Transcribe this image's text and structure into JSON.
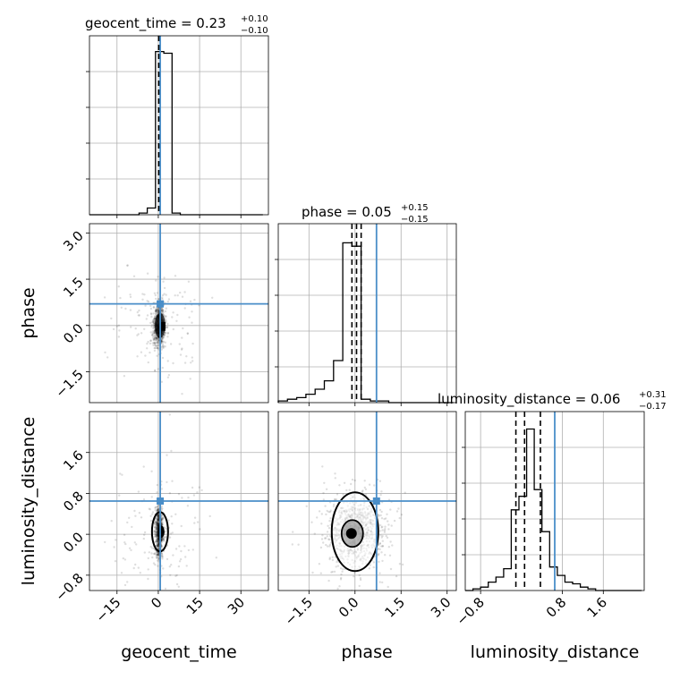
{
  "chart_data": {
    "type": "corner",
    "truth_color": "#4a8ec8",
    "parameters": [
      {
        "name": "geocent_time",
        "xlabel": "geocent_time",
        "title_prefix": "geocent_time = 0.23",
        "title_plus": "+0.10",
        "title_minus": "−0.10",
        "range": [
          -25,
          40
        ],
        "ticks": [
          -15,
          0,
          15,
          30
        ],
        "tick_labels": [
          "−15",
          "0",
          "15",
          "30"
        ],
        "truth": 0.7,
        "quantiles": [
          0.13,
          0.23,
          0.33
        ],
        "hist_edges": [
          -25,
          -22,
          -19,
          -16,
          -13,
          -10,
          -7,
          -4,
          -1,
          2,
          5,
          8,
          11,
          14,
          17,
          20,
          23,
          26,
          29,
          32,
          35,
          38
        ],
        "hist_counts": [
          0,
          0,
          0,
          0,
          0,
          0,
          0.01,
          0.04,
          0.97,
          0.96,
          0.01,
          0,
          0,
          0,
          0,
          0,
          0,
          0,
          0,
          0,
          0
        ]
      },
      {
        "name": "phase",
        "xlabel": "phase",
        "ylabel": "phase",
        "title_prefix": "phase = 0.05",
        "title_plus": "+0.15",
        "title_minus": "−0.15",
        "range": [
          -2.5,
          3.3
        ],
        "ticks": [
          -1.5,
          0.0,
          1.5,
          3.0
        ],
        "tick_labels": [
          "−1.5",
          "0.0",
          "1.5",
          "3.0"
        ],
        "truth": 0.7,
        "quantiles": [
          -0.1,
          0.05,
          0.2
        ],
        "hist_edges": [
          -2.5,
          -2.2,
          -1.9,
          -1.6,
          -1.3,
          -1.0,
          -0.7,
          -0.4,
          -0.1,
          0.2,
          0.5,
          0.8,
          1.1,
          1.4,
          1.7,
          2.0,
          2.3,
          2.6,
          2.9,
          3.2
        ],
        "hist_counts": [
          0.01,
          0.02,
          0.03,
          0.05,
          0.08,
          0.13,
          0.25,
          0.95,
          0.93,
          0.02,
          0.01,
          0.01,
          0,
          0,
          0,
          0,
          0,
          0,
          0
        ]
      },
      {
        "name": "luminosity_distance",
        "xlabel": "luminosity_distance",
        "ylabel": "luminosity_distance",
        "title_prefix": "luminosity_distance = 0.06",
        "title_plus": "+0.31",
        "title_minus": "−0.17",
        "range": [
          -1.1,
          2.4
        ],
        "ticks": [
          -0.8,
          0.8,
          1.6
        ],
        "tick_labels": [
          "−0.8",
          "0.8",
          "1.6"
        ],
        "y_ticks": [
          -0.8,
          0.0,
          0.8,
          1.6
        ],
        "y_tick_labels": [
          "−0.8",
          "0.0",
          "0.8",
          "1.6"
        ],
        "truth": 0.65,
        "quantiles": [
          -0.11,
          0.06,
          0.37
        ],
        "hist_edges": [
          -1.1,
          -0.95,
          -0.8,
          -0.65,
          -0.5,
          -0.35,
          -0.2,
          -0.05,
          0.1,
          0.25,
          0.4,
          0.55,
          0.7,
          0.85,
          1.0,
          1.15,
          1.3,
          1.45,
          1.6,
          1.75,
          1.9,
          2.05,
          2.2,
          2.35
        ],
        "hist_counts": [
          0,
          0.01,
          0.02,
          0.05,
          0.08,
          0.13,
          0.48,
          0.56,
          0.96,
          0.6,
          0.35,
          0.14,
          0.09,
          0.05,
          0.04,
          0.02,
          0.01,
          0,
          0,
          0,
          0,
          0,
          0
        ]
      }
    ],
    "grid": true
  }
}
